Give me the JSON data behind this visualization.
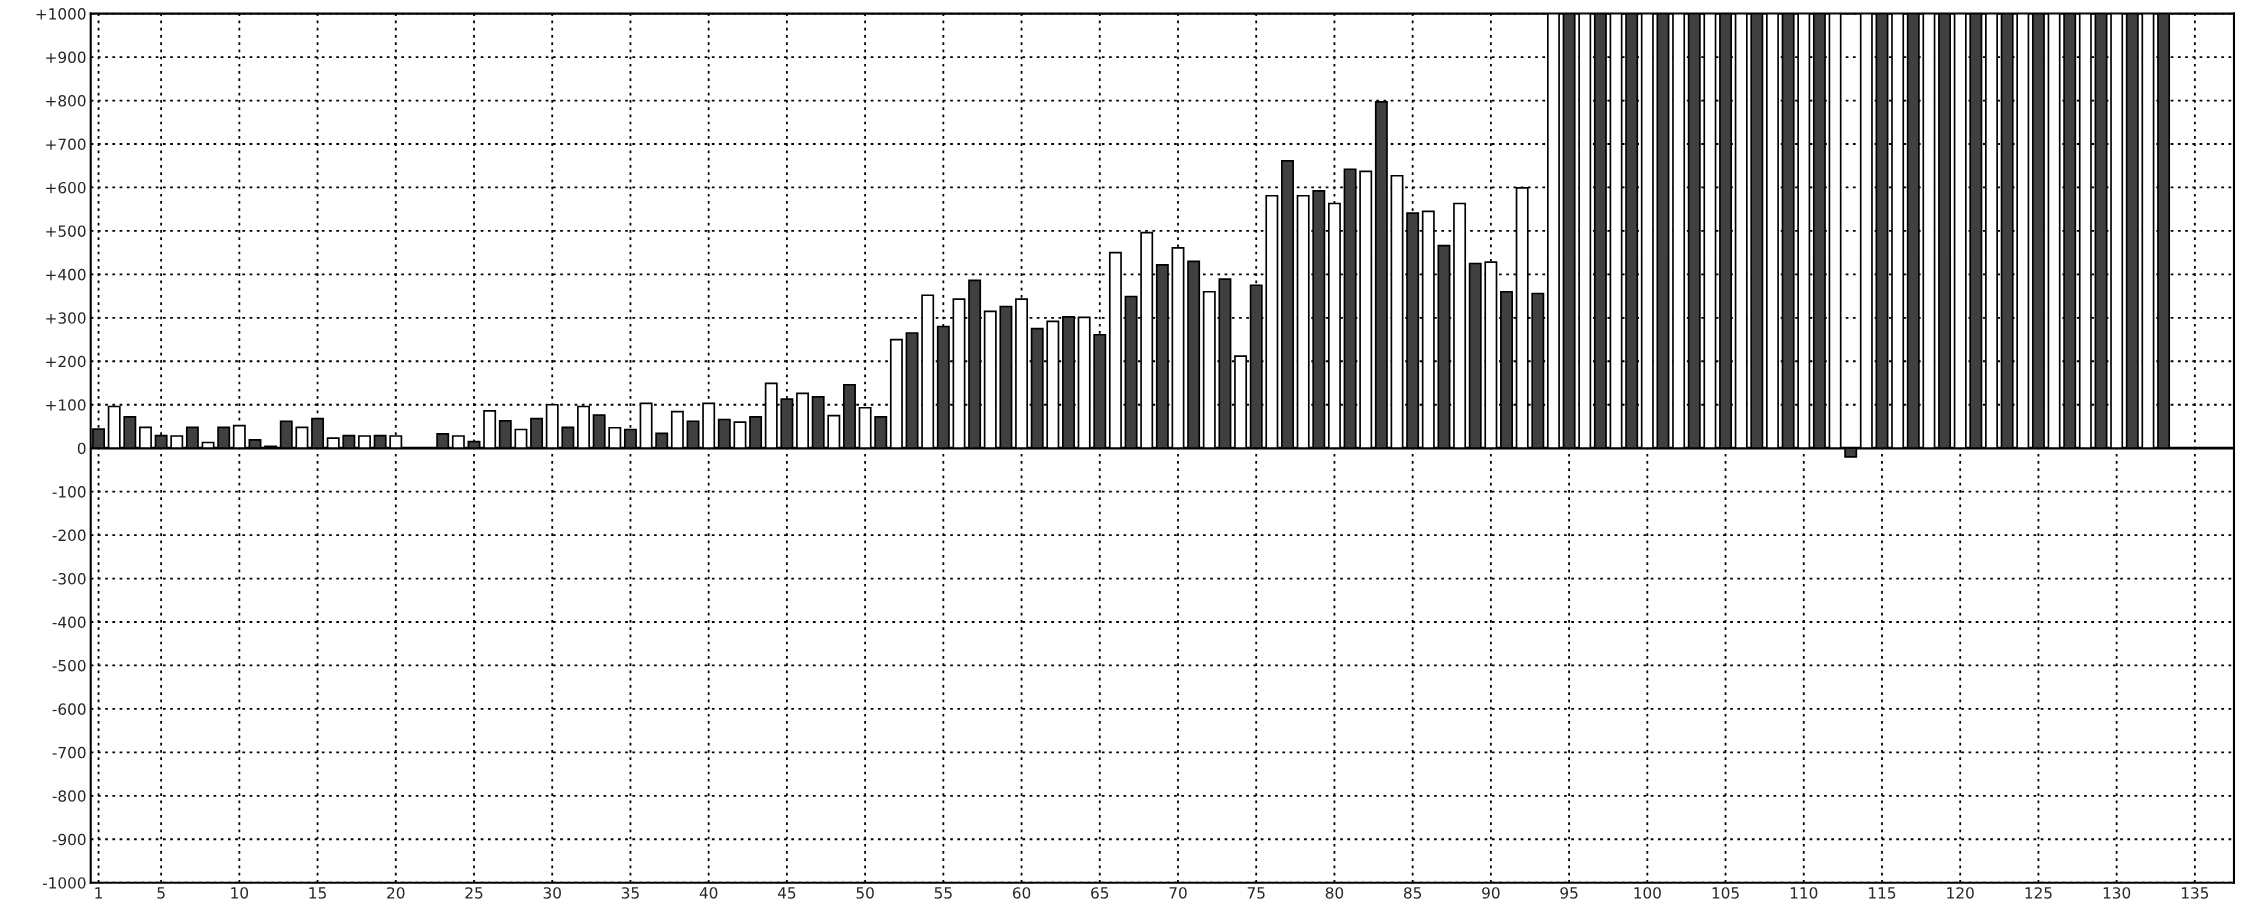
{
  "chart_data": {
    "type": "bar",
    "series": [
      {
        "color": "#404040",
        "x": [
          1,
          3,
          5,
          7,
          9,
          11,
          13,
          15,
          17,
          19,
          21,
          23,
          25,
          27,
          29,
          31,
          33,
          35,
          37,
          39,
          41,
          43,
          45,
          47,
          49,
          51,
          53,
          55,
          57,
          59,
          61,
          63,
          65,
          67,
          69,
          71,
          73,
          75,
          77,
          79,
          81,
          83,
          85,
          87,
          89,
          91,
          93,
          95,
          97,
          99,
          101,
          103,
          105,
          107,
          109,
          111,
          113,
          115,
          117,
          119,
          121,
          123,
          125,
          127,
          129,
          131,
          133
        ],
        "values": [
          44,
          72,
          29,
          48,
          48,
          19,
          62,
          68,
          29,
          29,
          null,
          33,
          15,
          63,
          68,
          48,
          76,
          43,
          34,
          62,
          66,
          72,
          113,
          118,
          146,
          72,
          265,
          280,
          386,
          326,
          275,
          302,
          261,
          349,
          422,
          430,
          389,
          375,
          661,
          592,
          642,
          797,
          541,
          466,
          425,
          360,
          356,
          1000,
          1000,
          1000,
          1000,
          1000,
          1000,
          1000,
          1000,
          1000,
          -20,
          1000,
          1000,
          1000,
          1000,
          1000,
          1000,
          1000,
          1000,
          1000,
          1000
        ]
      },
      {
        "color": "#ffffff",
        "x": [
          2,
          4,
          6,
          8,
          10,
          12,
          14,
          16,
          18,
          20,
          22,
          24,
          26,
          28,
          30,
          32,
          34,
          36,
          38,
          40,
          42,
          44,
          46,
          48,
          50,
          52,
          54,
          56,
          58,
          60,
          62,
          64,
          66,
          68,
          70,
          72,
          74,
          76,
          78,
          80,
          82,
          84,
          86,
          88,
          90,
          92,
          94,
          96,
          98,
          100,
          102,
          104,
          106,
          108,
          110,
          112,
          114,
          116,
          118,
          120,
          122,
          124,
          126,
          128,
          130,
          132
        ],
        "values": [
          96,
          48,
          28,
          13,
          52,
          4,
          48,
          23,
          28,
          28,
          null,
          28,
          86,
          43,
          100,
          96,
          47,
          103,
          84,
          103,
          60,
          149,
          126,
          75,
          93,
          250,
          352,
          343,
          315,
          343,
          292,
          301,
          450,
          496,
          461,
          360,
          212,
          581,
          581,
          563,
          637,
          627,
          545,
          563,
          428,
          599,
          1000,
          1000,
          1000,
          1000,
          1000,
          1000,
          1000,
          1000,
          1000,
          1000,
          1000,
          1000,
          1000,
          1000,
          1000,
          1000,
          1000,
          1000,
          1000,
          1000
        ]
      }
    ],
    "xlim": [
      0.5,
      137.5
    ],
    "xticks": [
      1,
      5,
      10,
      15,
      20,
      25,
      30,
      35,
      40,
      45,
      50,
      55,
      60,
      65,
      70,
      75,
      80,
      85,
      90,
      95,
      100,
      105,
      110,
      115,
      120,
      125,
      130,
      135
    ],
    "ylim": [
      -1000,
      1000
    ],
    "yticks": [
      {
        "value": -1000,
        "label": "-1000"
      },
      {
        "value": -900,
        "label": "-900"
      },
      {
        "value": -800,
        "label": "-800"
      },
      {
        "value": -700,
        "label": "-700"
      },
      {
        "value": -600,
        "label": "-600"
      },
      {
        "value": -500,
        "label": "-500"
      },
      {
        "value": -400,
        "label": "-400"
      },
      {
        "value": -300,
        "label": "-300"
      },
      {
        "value": -200,
        "label": "-200"
      },
      {
        "value": -100,
        "label": "-100"
      },
      0,
      {
        "value": 100,
        "label": "+100"
      },
      {
        "value": 200,
        "label": "+200"
      },
      {
        "value": 300,
        "label": "+300"
      },
      {
        "value": 400,
        "label": "+400"
      },
      {
        "value": 500,
        "label": "+500"
      },
      {
        "value": 600,
        "label": "+600"
      },
      {
        "value": 700,
        "label": "+700"
      },
      {
        "value": 800,
        "label": "+800"
      },
      {
        "value": 900,
        "label": "+900"
      },
      {
        "value": 1000,
        "label": "+1000"
      }
    ],
    "ref_lines": [
      {
        "axis": "y",
        "value": 0,
        "color": "#000000",
        "line_style": "solid"
      }
    ],
    "grid": true
  }
}
